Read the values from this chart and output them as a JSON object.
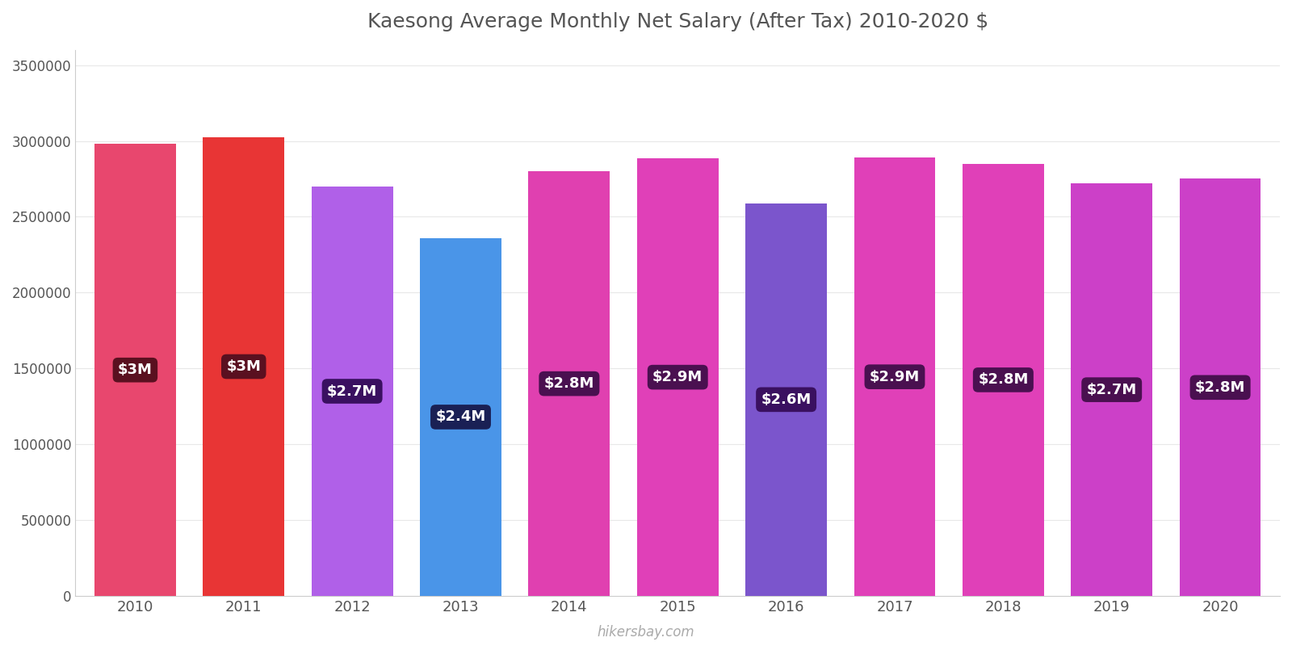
{
  "title": "Kaesong Average Monthly Net Salary (After Tax) 2010-2020 $",
  "years": [
    2010,
    2011,
    2012,
    2013,
    2014,
    2015,
    2016,
    2017,
    2018,
    2019,
    2020
  ],
  "values": [
    2980000,
    3025000,
    2700000,
    2360000,
    2800000,
    2885000,
    2590000,
    2890000,
    2850000,
    2720000,
    2750000
  ],
  "bar_colors": [
    "#e8476e",
    "#e83535",
    "#b060e8",
    "#4a95e8",
    "#e040b0",
    "#e040b8",
    "#7b55cc",
    "#e040b8",
    "#e040b8",
    "#cc40c8",
    "#cc40c8"
  ],
  "labels": [
    "$3M",
    "$3M",
    "$2.7M",
    "$2.4M",
    "$2.8M",
    "$2.9M",
    "$2.6M",
    "$2.9M",
    "$2.8M",
    "$2.7M",
    "$2.8M"
  ],
  "label_bg_colors": [
    "#5a1020",
    "#5a1020",
    "#3a1060",
    "#1a2055",
    "#4a1050",
    "#4a1050",
    "#3a1060",
    "#4a1050",
    "#4a1050",
    "#4a1050",
    "#4a1050"
  ],
  "label_text_color": "#ffffff",
  "ylabel_values": [
    0,
    500000,
    1000000,
    1500000,
    2000000,
    2500000,
    3000000,
    3500000
  ],
  "ylim": [
    0,
    3600000
  ],
  "background_color": "#ffffff",
  "watermark": "hikersbay.com",
  "title_color": "#555555"
}
